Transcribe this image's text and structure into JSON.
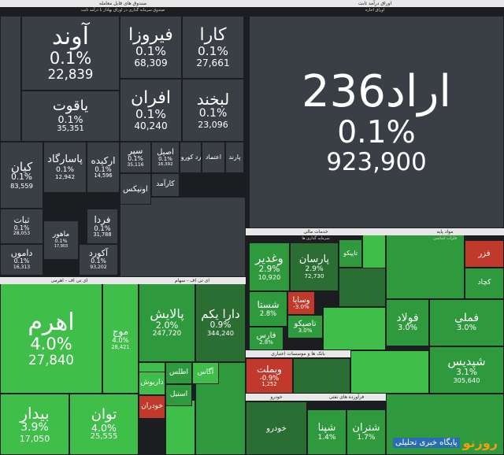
{
  "sections": [
    {
      "title": "صندوق های قابل معامله",
      "subtitle": "صندوق سرمایه گذاری در اوراق بهادار با درآمد ثابت",
      "tiles": [
        {
          "name": "آوند",
          "change": "0.1%",
          "volume": "22,839"
        },
        {
          "name": "فیروزا",
          "change": "0.1%",
          "volume": "68,309"
        },
        {
          "name": "کارا",
          "change": "0.1%",
          "volume": "27,661"
        },
        {
          "name": "یاقوت",
          "change": "0.1%",
          "volume": "35,351"
        },
        {
          "name": "افران",
          "change": "0.1%",
          "volume": "40,240"
        },
        {
          "name": "لبخند",
          "change": "0.1%",
          "volume": "23,096"
        },
        {
          "name": "کیان",
          "change": "0.1%",
          "volume": "83,559"
        },
        {
          "name": "پاسارگاد",
          "change": "0.1%",
          "volume": "12,942"
        },
        {
          "name": "ارکیده",
          "change": "0.1%",
          "volume": "14,596"
        },
        {
          "name": "سپر",
          "change": "0.1%",
          "volume": "35,116"
        },
        {
          "name": "اصیل",
          "change": "0.1%",
          "volume": "16,392"
        },
        {
          "name": "زمرد کوروش"
        },
        {
          "name": "اعتماد"
        },
        {
          "name": "پارند"
        },
        {
          "name": "اونیکس"
        },
        {
          "name": "کارآمد"
        },
        {
          "name": "ثبات",
          "change": "0.1%",
          "volume": "28,053"
        },
        {
          "name": "ماهور",
          "change": "0.1%",
          "volume": "17,903"
        },
        {
          "name": "فردا",
          "change": "0.1%",
          "volume": "31,788"
        },
        {
          "name": "داموں",
          "change": "0.1%",
          "volume": "16,313"
        },
        {
          "name": "آکورد",
          "change": "0.1%",
          "volume": "93,202"
        }
      ]
    },
    {
      "title": "اوراق درآمد ثابت",
      "subtitle": "اوراق اجاره",
      "tiles": [
        {
          "name": "اراد236",
          "change": "0.1%",
          "volume": "923,900"
        }
      ]
    },
    {
      "title": "ای تی اف - اهرمی",
      "tiles": [
        {
          "name": "اهرم",
          "change": "4.0%",
          "volume": "27,840"
        },
        {
          "name": "موج",
          "change": "4.0%",
          "volume": "28,421"
        },
        {
          "name": "بیدار",
          "change": "3.9%",
          "volume": "17,050"
        },
        {
          "name": "توان",
          "change": "4.0%",
          "volume": "25,555"
        }
      ]
    },
    {
      "title": "ای تی اف - سهام",
      "tiles": [
        {
          "name": "پالایش",
          "change": "2.0%",
          "volume": "247,720"
        },
        {
          "name": "دارا یکم",
          "change": "0.9%",
          "volume": "344,240"
        },
        {
          "name": "داریوش"
        },
        {
          "name": "اطلس"
        },
        {
          "name": "آگاس"
        },
        {
          "name": "استیل"
        },
        {
          "name": "خودران"
        }
      ]
    },
    {
      "title": "خدمات مالی",
      "subtitle": "سرمایه گذاری ها",
      "tiles": [
        {
          "name": "وغدیر",
          "change": "2.9%",
          "volume": "10,920"
        },
        {
          "name": "پارسان",
          "change": "2.9%",
          "volume": "72,730"
        },
        {
          "name": "تاپیکو"
        },
        {
          "name": "شستا",
          "change": "2.8%"
        },
        {
          "name": "وسایا",
          "change": "-3.0%"
        },
        {
          "name": "تاصیکو",
          "change": "3.0%"
        },
        {
          "name": "فارس",
          "change": "2.8%"
        }
      ]
    },
    {
      "title": "مواد پایه",
      "subtitle": "فلزات اساسی",
      "tiles": [
        {
          "name": "فزر"
        },
        {
          "name": "کچاد"
        },
        {
          "name": "فولاد",
          "change": "3.0%"
        },
        {
          "name": "فملی",
          "change": "3.0%"
        },
        {
          "name": "شپدیس",
          "change": "3.1%",
          "volume": "305,640"
        }
      ]
    },
    {
      "title": "بانک ها و موسسات اعتباری",
      "tiles": [
        {
          "name": "وبملت",
          "change": "-0.9%",
          "volume": "1,252"
        }
      ]
    },
    {
      "title": "خودرو",
      "tiles": [
        {
          "name": "خودرو"
        }
      ]
    },
    {
      "title": "فرآورده های نفتی",
      "tiles": [
        {
          "name": "شپنا",
          "change": "1.4%"
        },
        {
          "name": "شتران",
          "change": "1.7%"
        }
      ]
    }
  ],
  "watermark": {
    "brand": "روزنو",
    "tagline": "پایگاه خبری تحلیلی"
  }
}
